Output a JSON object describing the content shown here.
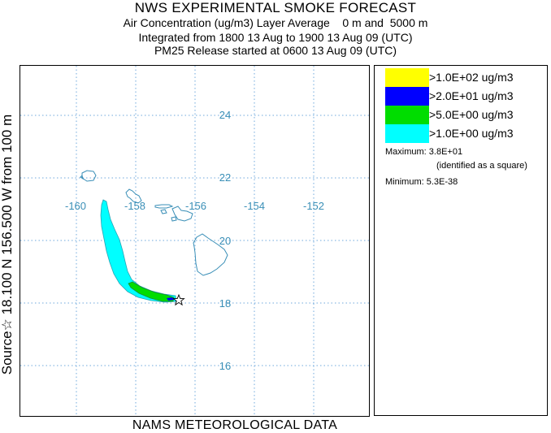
{
  "header": {
    "title": "NWS EXPERIMENTAL SMOKE FORECAST",
    "line1": "Air Concentration (ug/m3) Layer Average    0 m and  5000 m",
    "line2": "Integrated from 1800 13 Aug to 1900 13 Aug 09 (UTC)",
    "line3": "PM25 Release started at 0600 13 Aug 09 (UTC)"
  },
  "side_label": "Source☆ 18.100  N 156.500  W     from  100 m",
  "footer": "NAMS METEOROLOGICAL DATA",
  "map": {
    "lon_labels": [
      "-160",
      "-158",
      "-156",
      "-154",
      "-152"
    ],
    "lat_labels": [
      "24",
      "22",
      "20",
      "18",
      "16"
    ],
    "grid_color": "#6fa8dc",
    "coast_color": "#3a8fb7",
    "source_lat": 18.1,
    "source_lon": -156.5
  },
  "legend": {
    "items": [
      {
        "label": ">1.0E+02 ug/m3",
        "color": "#ffff00"
      },
      {
        "label": ">2.0E+01 ug/m3",
        "color": "#0000ff"
      },
      {
        "label": ">5.0E+00 ug/m3",
        "color": "#00dd00"
      },
      {
        "label": ">1.0E+00 ug/m3",
        "color": "#00ffff"
      }
    ],
    "maximum_label": "Maximum: 3.8E+01",
    "maximum_note": "(identified as a square)",
    "minimum_label": "Minimum: 5.3E-38"
  }
}
